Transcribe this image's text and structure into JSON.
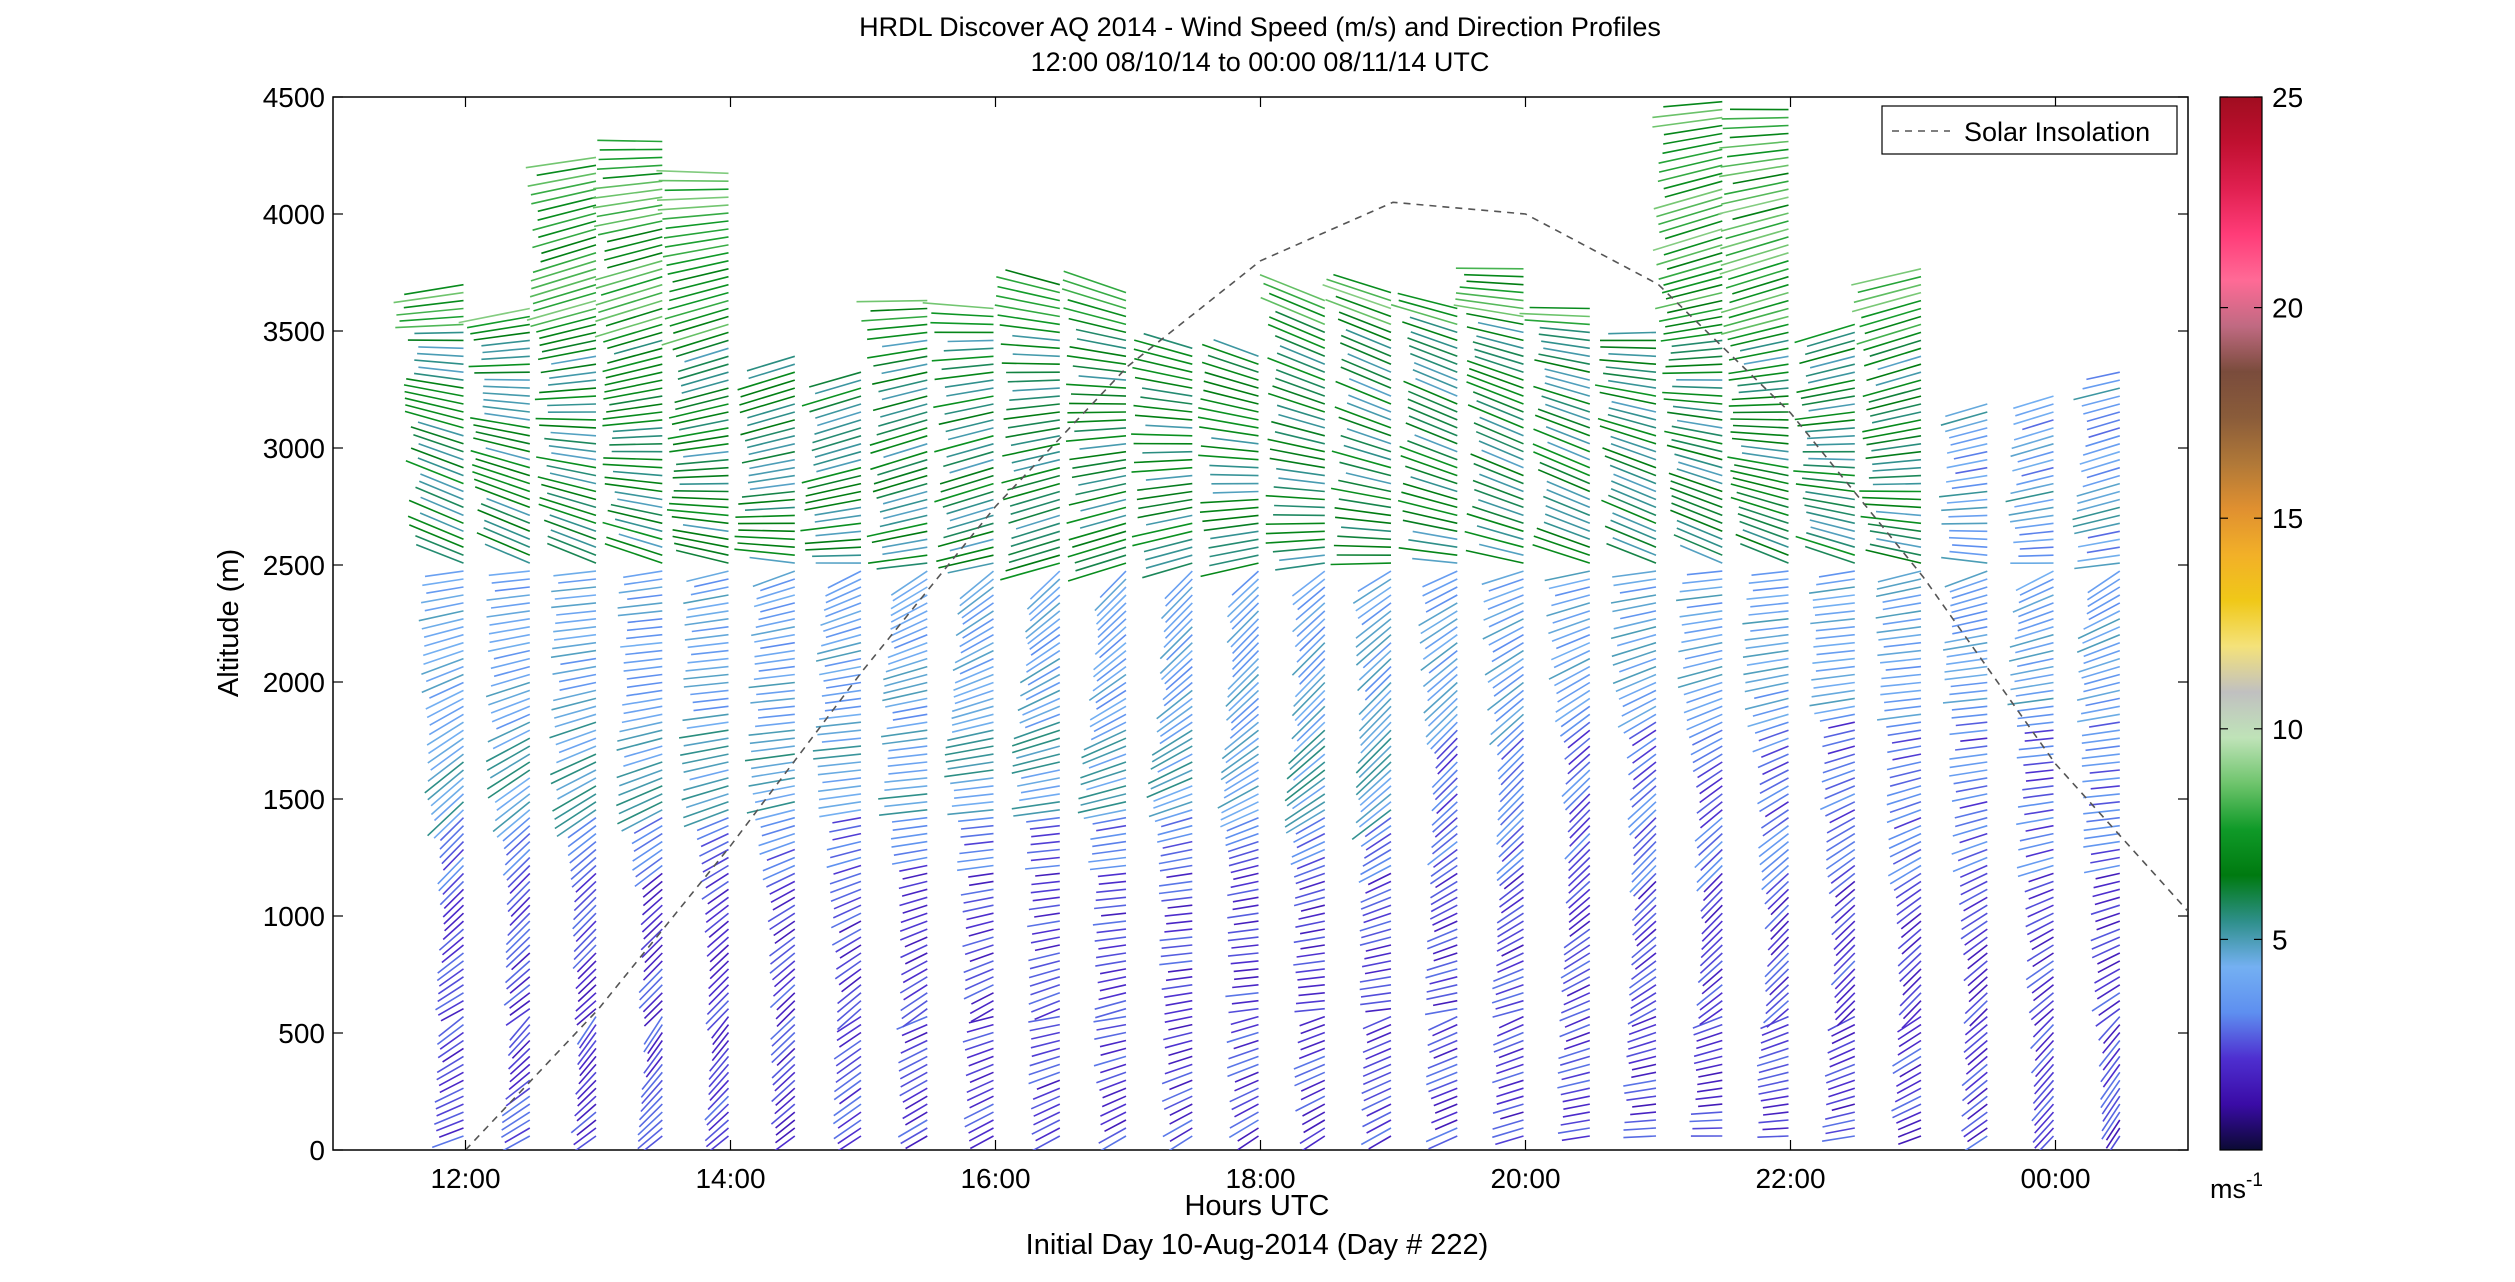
{
  "chart_data": {
    "type": "wind_barb_profile",
    "title": "HRDL Discover AQ 2014 - Wind Speed (m/s) and Direction Profiles",
    "subtitle": "12:00 08/10/14 to 00:00 08/11/14  UTC",
    "xlabel": "Hours UTC",
    "xlabel2": "Initial Day 10-Aug-2014 (Day # 222)",
    "ylabel": "Altitude (m)",
    "xlim": [
      11,
      25
    ],
    "ylim": [
      0,
      4500
    ],
    "x_ticks": [
      {
        "value": 12,
        "label": "12:00"
      },
      {
        "value": 14,
        "label": "14:00"
      },
      {
        "value": 16,
        "label": "16:00"
      },
      {
        "value": 18,
        "label": "18:00"
      },
      {
        "value": 20,
        "label": "20:00"
      },
      {
        "value": 22,
        "label": "22:00"
      },
      {
        "value": 24,
        "label": "00:00"
      }
    ],
    "y_ticks": [
      0,
      500,
      1000,
      1500,
      2000,
      2500,
      3000,
      3500,
      4000,
      4500
    ],
    "legend": {
      "label": "Solar Insolation",
      "position": "top-right",
      "style": "dashed"
    },
    "colorbar": {
      "unit_label": "ms",
      "unit_exponent": "-1",
      "range": [
        0,
        25
      ],
      "ticks": [
        5,
        10,
        15,
        20,
        25
      ],
      "colors": [
        "#0b0a33",
        "#3a0ba6",
        "#4e2fd0",
        "#5e8ff0",
        "#74b0f2",
        "#2e8f8a",
        "#007a10",
        "#0f9a28",
        "#6ec46c",
        "#bfe3b8",
        "#c0c0c0",
        "#f4e27a",
        "#f0c818",
        "#f2b028",
        "#e09030",
        "#b07838",
        "#8a5c3a",
        "#7a4c3c",
        "#c06a82",
        "#ff6a96",
        "#ff3c78",
        "#e02050",
        "#c01030",
        "#a00d20"
      ]
    },
    "profile_times": [
      11.75,
      12.25,
      12.75,
      13.25,
      13.75,
      14.25,
      14.75,
      15.25,
      15.75,
      16.25,
      16.75,
      17.25,
      17.75,
      18.25,
      18.75,
      19.25,
      19.75,
      20.25,
      20.75,
      21.25,
      21.75,
      22.25,
      22.75,
      23.25,
      23.75,
      24.25
    ],
    "profile_tops": [
      3700,
      3600,
      4270,
      4320,
      4200,
      3400,
      3350,
      3650,
      3620,
      3700,
      3680,
      3440,
      3400,
      3650,
      3680,
      3600,
      3780,
      3600,
      3500,
      4480,
      4460,
      3550,
      3780,
      3200,
      3250,
      3350
    ],
    "solar_insolation": {
      "x": [
        12.0,
        13.0,
        14.0,
        15.0,
        16.0,
        17.0,
        18.0,
        19.0,
        20.0,
        21.0,
        22.0,
        23.0,
        24.0,
        25.0
      ],
      "y": [
        0,
        600,
        1300,
        2050,
        2750,
        3350,
        3800,
        4050,
        4000,
        3700,
        3150,
        2450,
        1650,
        1020
      ]
    },
    "speed_regimes": [
      {
        "layer": "0-1200 m",
        "typical_speed_ms": 2
      },
      {
        "layer": "1500-1800 m",
        "typical_speed_ms": 5
      },
      {
        "layer": "2500-3500 m",
        "typical_speed_ms": 6
      },
      {
        "layer": "above 3500 m",
        "typical_speed_ms": 8
      }
    ]
  }
}
